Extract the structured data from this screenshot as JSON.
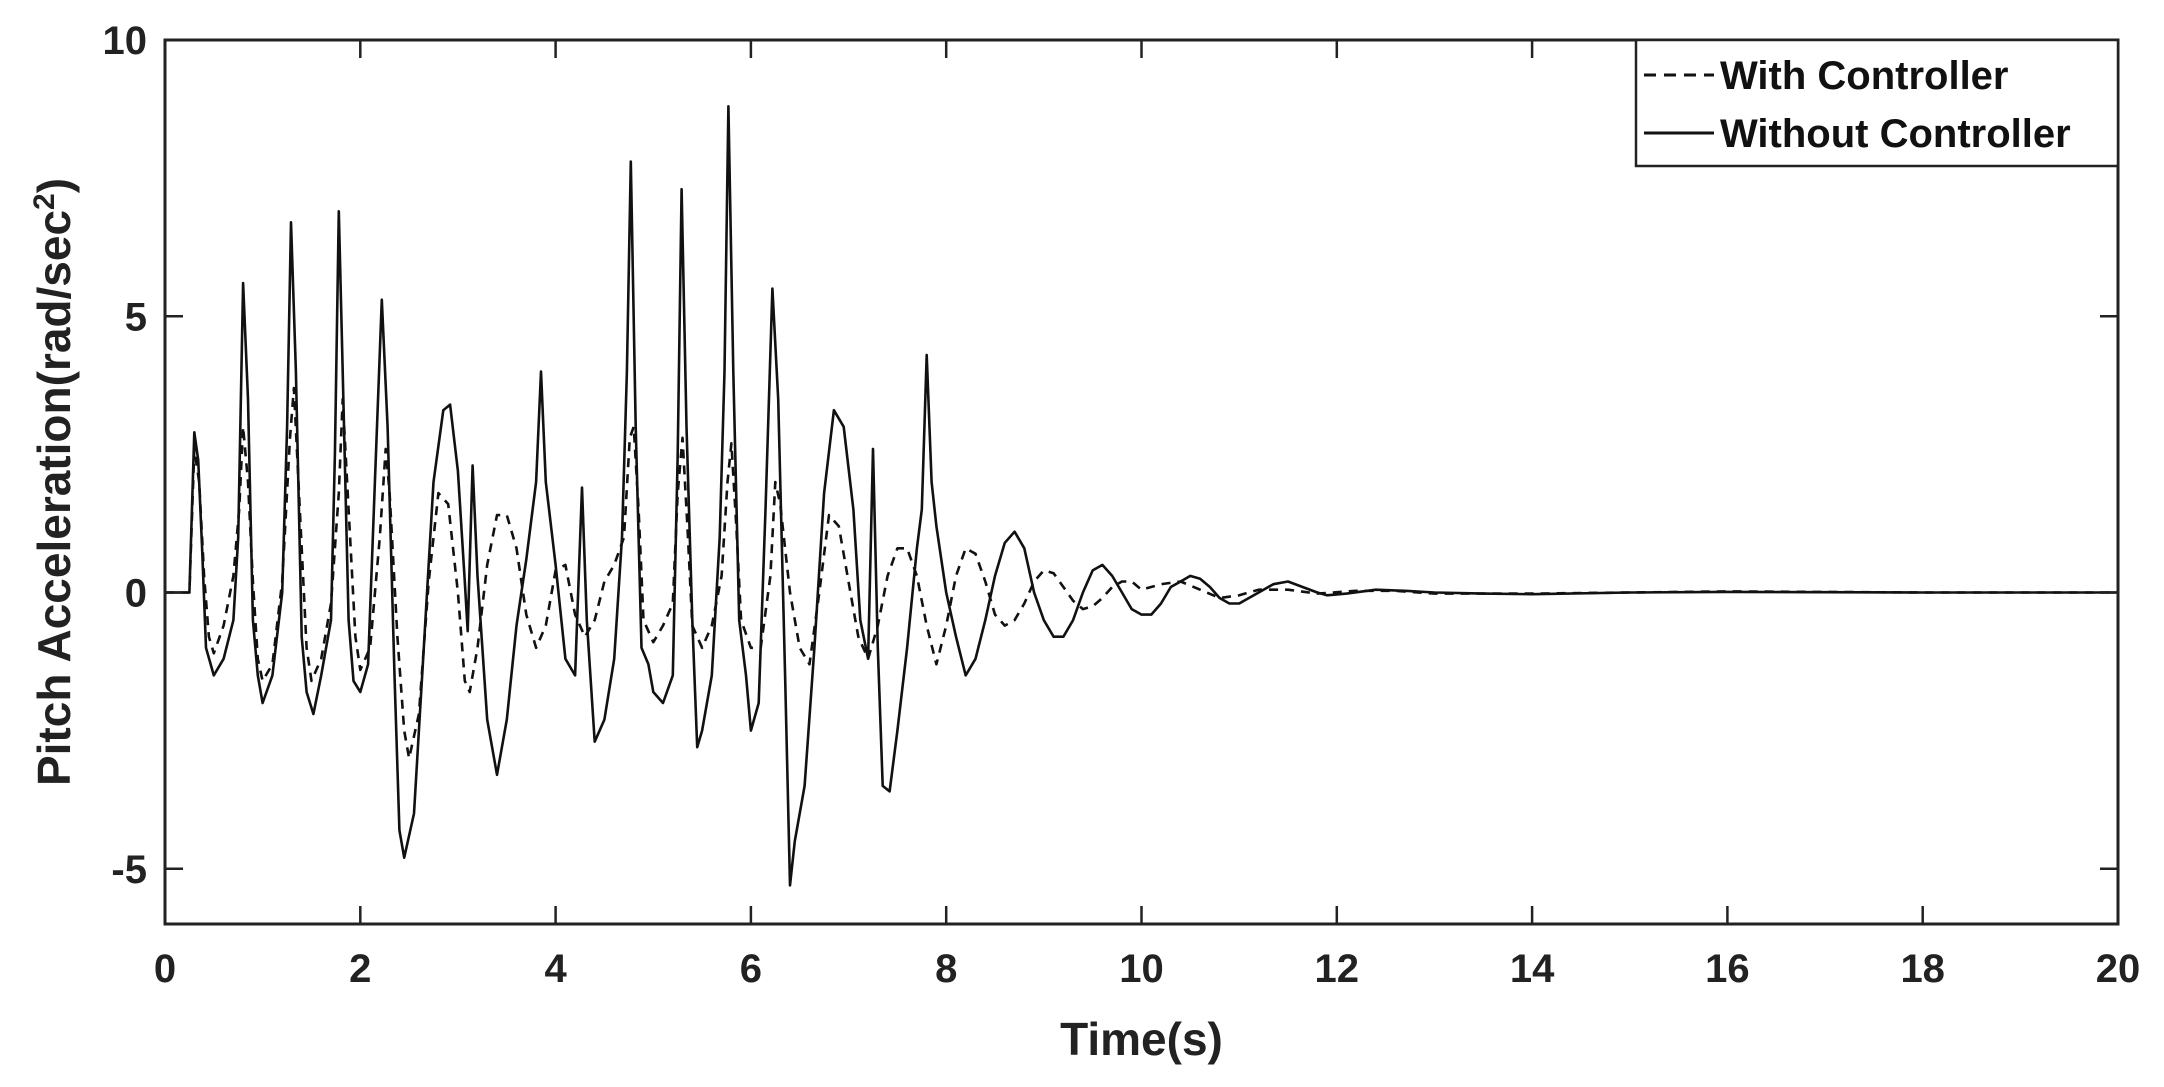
{
  "chart_data": {
    "type": "line",
    "title": "",
    "xlabel": "Time(s)",
    "ylabel_main": "Pitch Acceleration(rad/sec",
    "ylabel_sup": "2",
    "ylabel_close": ")",
    "xlim": [
      0,
      20
    ],
    "ylim": [
      -6,
      10
    ],
    "xticks": [
      0,
      2,
      4,
      6,
      8,
      10,
      12,
      14,
      16,
      18,
      20
    ],
    "yticks": [
      -5,
      0,
      5,
      10
    ],
    "grid": false,
    "legend_position": "top-right",
    "series": [
      {
        "name": "With Controller",
        "style": "dashed",
        "color": "#111111",
        "points": [
          [
            0,
            0
          ],
          [
            0.25,
            0
          ],
          [
            0.3,
            2.6
          ],
          [
            0.35,
            2.0
          ],
          [
            0.4,
            0.3
          ],
          [
            0.45,
            -0.8
          ],
          [
            0.5,
            -1.1
          ],
          [
            0.6,
            -0.6
          ],
          [
            0.7,
            0.3
          ],
          [
            0.76,
            1.5
          ],
          [
            0.8,
            3.0
          ],
          [
            0.85,
            2.0
          ],
          [
            0.9,
            0.2
          ],
          [
            0.95,
            -1.2
          ],
          [
            1.0,
            -1.6
          ],
          [
            1.1,
            -1.3
          ],
          [
            1.2,
            0.2
          ],
          [
            1.28,
            2.8
          ],
          [
            1.32,
            3.7
          ],
          [
            1.38,
            1.5
          ],
          [
            1.45,
            -1.0
          ],
          [
            1.5,
            -1.6
          ],
          [
            1.6,
            -1.2
          ],
          [
            1.7,
            -0.2
          ],
          [
            1.78,
            1.8
          ],
          [
            1.82,
            3.5
          ],
          [
            1.88,
            1.5
          ],
          [
            1.95,
            -0.8
          ],
          [
            2.0,
            -1.4
          ],
          [
            2.1,
            -1.0
          ],
          [
            2.2,
            1.0
          ],
          [
            2.26,
            2.6
          ],
          [
            2.3,
            1.8
          ],
          [
            2.38,
            -0.8
          ],
          [
            2.45,
            -2.5
          ],
          [
            2.5,
            -3.0
          ],
          [
            2.6,
            -2.2
          ],
          [
            2.7,
            0.2
          ],
          [
            2.8,
            1.8
          ],
          [
            2.9,
            1.6
          ],
          [
            3.0,
            0.0
          ],
          [
            3.07,
            -1.6
          ],
          [
            3.12,
            -1.8
          ],
          [
            3.2,
            -1.0
          ],
          [
            3.3,
            0.5
          ],
          [
            3.4,
            1.4
          ],
          [
            3.5,
            1.4
          ],
          [
            3.6,
            0.8
          ],
          [
            3.7,
            -0.4
          ],
          [
            3.8,
            -1.0
          ],
          [
            3.9,
            -0.6
          ],
          [
            4.0,
            0.4
          ],
          [
            4.1,
            0.5
          ],
          [
            4.2,
            -0.4
          ],
          [
            4.3,
            -0.8
          ],
          [
            4.4,
            -0.5
          ],
          [
            4.5,
            0.2
          ],
          [
            4.6,
            0.5
          ],
          [
            4.7,
            1.0
          ],
          [
            4.76,
            2.8
          ],
          [
            4.8,
            3.0
          ],
          [
            4.85,
            1.5
          ],
          [
            4.9,
            -0.5
          ],
          [
            5.0,
            -0.9
          ],
          [
            5.1,
            -0.6
          ],
          [
            5.2,
            -0.2
          ],
          [
            5.25,
            1.8
          ],
          [
            5.3,
            2.8
          ],
          [
            5.35,
            1.2
          ],
          [
            5.4,
            -0.6
          ],
          [
            5.5,
            -1.0
          ],
          [
            5.6,
            -0.6
          ],
          [
            5.7,
            0.3
          ],
          [
            5.76,
            2.0
          ],
          [
            5.8,
            2.7
          ],
          [
            5.85,
            1.2
          ],
          [
            5.9,
            -0.5
          ],
          [
            6.0,
            -1.0
          ],
          [
            6.1,
            -1.0
          ],
          [
            6.2,
            0.3
          ],
          [
            6.25,
            2.0
          ],
          [
            6.3,
            1.6
          ],
          [
            6.4,
            0.0
          ],
          [
            6.5,
            -1.0
          ],
          [
            6.6,
            -1.3
          ],
          [
            6.7,
            0.0
          ],
          [
            6.8,
            1.4
          ],
          [
            6.9,
            1.2
          ],
          [
            7.0,
            0.2
          ],
          [
            7.1,
            -0.8
          ],
          [
            7.2,
            -1.2
          ],
          [
            7.3,
            -0.6
          ],
          [
            7.4,
            0.3
          ],
          [
            7.5,
            0.8
          ],
          [
            7.6,
            0.8
          ],
          [
            7.7,
            0.3
          ],
          [
            7.8,
            -0.6
          ],
          [
            7.9,
            -1.3
          ],
          [
            8.0,
            -0.6
          ],
          [
            8.1,
            0.3
          ],
          [
            8.2,
            0.8
          ],
          [
            8.3,
            0.7
          ],
          [
            8.4,
            0.2
          ],
          [
            8.5,
            -0.4
          ],
          [
            8.6,
            -0.6
          ],
          [
            8.7,
            -0.5
          ],
          [
            8.8,
            -0.2
          ],
          [
            8.9,
            0.2
          ],
          [
            9.0,
            0.4
          ],
          [
            9.1,
            0.35
          ],
          [
            9.2,
            0.1
          ],
          [
            9.3,
            -0.15
          ],
          [
            9.4,
            -0.3
          ],
          [
            9.5,
            -0.25
          ],
          [
            9.6,
            -0.1
          ],
          [
            9.7,
            0.1
          ],
          [
            9.8,
            0.2
          ],
          [
            9.9,
            0.2
          ],
          [
            10.0,
            0.05
          ],
          [
            10.2,
            0.15
          ],
          [
            10.4,
            0.2
          ],
          [
            10.6,
            0.05
          ],
          [
            10.8,
            -0.1
          ],
          [
            11.0,
            -0.05
          ],
          [
            11.2,
            0.05
          ],
          [
            11.5,
            0.05
          ],
          [
            11.8,
            -0.02
          ],
          [
            12.2,
            0.03
          ],
          [
            12.6,
            0.03
          ],
          [
            13.0,
            -0.02
          ],
          [
            14.0,
            -0.02
          ],
          [
            16.0,
            0.02
          ],
          [
            18.0,
            0.0
          ],
          [
            20.0,
            0.0
          ]
        ]
      },
      {
        "name": "Without Controller",
        "style": "solid",
        "color": "#111111",
        "points": [
          [
            0,
            0
          ],
          [
            0.25,
            0
          ],
          [
            0.3,
            2.9
          ],
          [
            0.34,
            2.4
          ],
          [
            0.38,
            0.8
          ],
          [
            0.42,
            -1.0
          ],
          [
            0.5,
            -1.5
          ],
          [
            0.6,
            -1.2
          ],
          [
            0.7,
            -0.5
          ],
          [
            0.75,
            1.0
          ],
          [
            0.8,
            5.6
          ],
          [
            0.85,
            3.5
          ],
          [
            0.9,
            -0.5
          ],
          [
            0.95,
            -1.5
          ],
          [
            1.0,
            -2.0
          ],
          [
            1.1,
            -1.5
          ],
          [
            1.2,
            0.0
          ],
          [
            1.25,
            3.0
          ],
          [
            1.29,
            6.7
          ],
          [
            1.34,
            4.0
          ],
          [
            1.4,
            -0.8
          ],
          [
            1.45,
            -1.8
          ],
          [
            1.52,
            -2.2
          ],
          [
            1.6,
            -1.5
          ],
          [
            1.7,
            -0.5
          ],
          [
            1.74,
            2.5
          ],
          [
            1.78,
            6.9
          ],
          [
            1.82,
            4.0
          ],
          [
            1.88,
            -0.5
          ],
          [
            1.93,
            -1.6
          ],
          [
            2.0,
            -1.8
          ],
          [
            2.08,
            -1.3
          ],
          [
            2.15,
            2.0
          ],
          [
            2.22,
            5.3
          ],
          [
            2.28,
            3.0
          ],
          [
            2.35,
            -1.5
          ],
          [
            2.4,
            -4.3
          ],
          [
            2.45,
            -4.8
          ],
          [
            2.55,
            -4.0
          ],
          [
            2.65,
            -1.0
          ],
          [
            2.75,
            2.0
          ],
          [
            2.85,
            3.3
          ],
          [
            2.92,
            3.4
          ],
          [
            3.0,
            2.2
          ],
          [
            3.07,
            0.2
          ],
          [
            3.1,
            -0.7
          ],
          [
            3.15,
            2.3
          ],
          [
            3.2,
            0.3
          ],
          [
            3.3,
            -2.3
          ],
          [
            3.4,
            -3.3
          ],
          [
            3.5,
            -2.3
          ],
          [
            3.6,
            -0.6
          ],
          [
            3.7,
            0.6
          ],
          [
            3.8,
            2.0
          ],
          [
            3.85,
            4.0
          ],
          [
            3.9,
            2.0
          ],
          [
            4.0,
            0.5
          ],
          [
            4.1,
            -1.2
          ],
          [
            4.2,
            -1.5
          ],
          [
            4.27,
            1.9
          ],
          [
            4.32,
            -0.5
          ],
          [
            4.4,
            -2.7
          ],
          [
            4.5,
            -2.3
          ],
          [
            4.6,
            -1.2
          ],
          [
            4.68,
            1.0
          ],
          [
            4.73,
            4.0
          ],
          [
            4.77,
            7.8
          ],
          [
            4.82,
            3.0
          ],
          [
            4.88,
            -1.0
          ],
          [
            4.95,
            -1.3
          ],
          [
            5.0,
            -1.8
          ],
          [
            5.1,
            -2.0
          ],
          [
            5.2,
            -1.5
          ],
          [
            5.25,
            2.5
          ],
          [
            5.29,
            7.3
          ],
          [
            5.34,
            3.0
          ],
          [
            5.4,
            -0.5
          ],
          [
            5.45,
            -2.8
          ],
          [
            5.5,
            -2.5
          ],
          [
            5.6,
            -1.5
          ],
          [
            5.68,
            1.0
          ],
          [
            5.73,
            4.0
          ],
          [
            5.77,
            8.8
          ],
          [
            5.82,
            4.0
          ],
          [
            5.88,
            -0.5
          ],
          [
            5.95,
            -1.5
          ],
          [
            6.0,
            -2.5
          ],
          [
            6.08,
            -2.0
          ],
          [
            6.15,
            1.5
          ],
          [
            6.22,
            5.5
          ],
          [
            6.28,
            3.5
          ],
          [
            6.35,
            -1.5
          ],
          [
            6.4,
            -5.3
          ],
          [
            6.45,
            -4.5
          ],
          [
            6.55,
            -3.5
          ],
          [
            6.65,
            -1.0
          ],
          [
            6.75,
            1.8
          ],
          [
            6.85,
            3.3
          ],
          [
            6.95,
            3.0
          ],
          [
            7.05,
            1.5
          ],
          [
            7.12,
            -0.5
          ],
          [
            7.2,
            -1.2
          ],
          [
            7.25,
            2.6
          ],
          [
            7.3,
            -1.0
          ],
          [
            7.35,
            -3.5
          ],
          [
            7.42,
            -3.6
          ],
          [
            7.5,
            -2.5
          ],
          [
            7.6,
            -1.0
          ],
          [
            7.7,
            0.8
          ],
          [
            7.75,
            1.5
          ],
          [
            7.8,
            4.3
          ],
          [
            7.85,
            2.0
          ],
          [
            7.9,
            1.2
          ],
          [
            8.0,
            0.0
          ],
          [
            8.1,
            -0.8
          ],
          [
            8.2,
            -1.5
          ],
          [
            8.3,
            -1.2
          ],
          [
            8.4,
            -0.5
          ],
          [
            8.5,
            0.3
          ],
          [
            8.6,
            0.9
          ],
          [
            8.7,
            1.1
          ],
          [
            8.8,
            0.8
          ],
          [
            8.9,
            0.0
          ],
          [
            9.0,
            -0.5
          ],
          [
            9.1,
            -0.8
          ],
          [
            9.2,
            -0.8
          ],
          [
            9.3,
            -0.5
          ],
          [
            9.4,
            0.0
          ],
          [
            9.5,
            0.4
          ],
          [
            9.6,
            0.5
          ],
          [
            9.7,
            0.3
          ],
          [
            9.8,
            0.0
          ],
          [
            9.9,
            -0.3
          ],
          [
            10.0,
            -0.4
          ],
          [
            10.1,
            -0.4
          ],
          [
            10.2,
            -0.2
          ],
          [
            10.3,
            0.1
          ],
          [
            10.4,
            0.2
          ],
          [
            10.5,
            0.3
          ],
          [
            10.6,
            0.25
          ],
          [
            10.7,
            0.1
          ],
          [
            10.8,
            -0.1
          ],
          [
            10.9,
            -0.2
          ],
          [
            11.0,
            -0.2
          ],
          [
            11.1,
            -0.1
          ],
          [
            11.2,
            0.0
          ],
          [
            11.35,
            0.15
          ],
          [
            11.5,
            0.2
          ],
          [
            11.65,
            0.1
          ],
          [
            11.8,
            0.0
          ],
          [
            11.9,
            -0.05
          ],
          [
            12.1,
            -0.02
          ],
          [
            12.4,
            0.05
          ],
          [
            12.7,
            0.03
          ],
          [
            13.0,
            0.0
          ],
          [
            13.5,
            -0.02
          ],
          [
            14.0,
            -0.03
          ],
          [
            15.0,
            0.0
          ],
          [
            16.0,
            0.01
          ],
          [
            18.0,
            0.0
          ],
          [
            20.0,
            0.0
          ]
        ]
      }
    ]
  }
}
